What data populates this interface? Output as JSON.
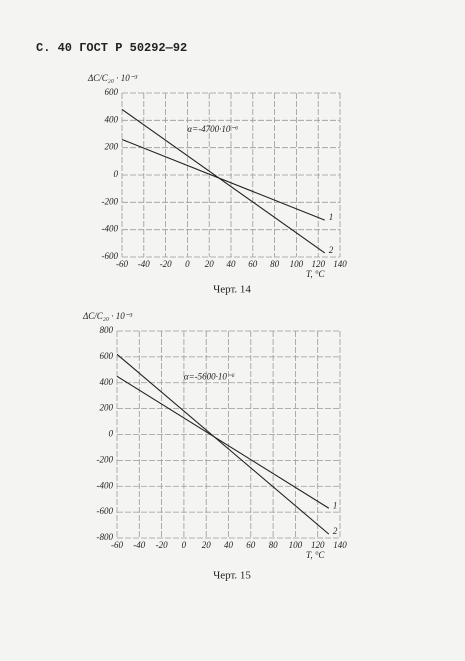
{
  "header": "С. 40 ГОСТ Р 50292—92",
  "chart_data": [
    {
      "type": "line",
      "caption": "Черт. 14",
      "y_label": "ΔC/C₂₀ · 10⁻³",
      "x_label": "T, °C",
      "annotation": "α=-4700·10⁻⁶",
      "x": [
        -60,
        126
      ],
      "series": [
        {
          "name": "1",
          "color": "#222222",
          "values": [
            260,
            -330
          ]
        },
        {
          "name": "2",
          "color": "#222222",
          "values": [
            480,
            -570
          ]
        }
      ],
      "xlim": [
        -60,
        140
      ],
      "xticks": [
        -60,
        -40,
        -20,
        0,
        20,
        40,
        60,
        80,
        100,
        120,
        140
      ],
      "ylim": [
        -600,
        600
      ],
      "yticks": [
        -600,
        -400,
        -200,
        0,
        200,
        400,
        600
      ],
      "grid": true
    },
    {
      "type": "line",
      "caption": "Черт. 15",
      "y_label": "ΔC/C₂₀ · 10⁻³",
      "x_label": "T, °C",
      "annotation": "α=-5600·10⁻⁶",
      "x": [
        -60,
        130
      ],
      "series": [
        {
          "name": "1",
          "color": "#222222",
          "values": [
            450,
            -570
          ]
        },
        {
          "name": "2",
          "color": "#222222",
          "values": [
            620,
            -770
          ]
        }
      ],
      "xlim": [
        -60,
        140
      ],
      "xticks": [
        -60,
        -40,
        -20,
        0,
        20,
        40,
        60,
        80,
        100,
        120,
        140
      ],
      "ylim": [
        -800,
        800
      ],
      "yticks": [
        -800,
        -600,
        -400,
        -200,
        0,
        200,
        400,
        600,
        800
      ],
      "grid": true
    }
  ]
}
